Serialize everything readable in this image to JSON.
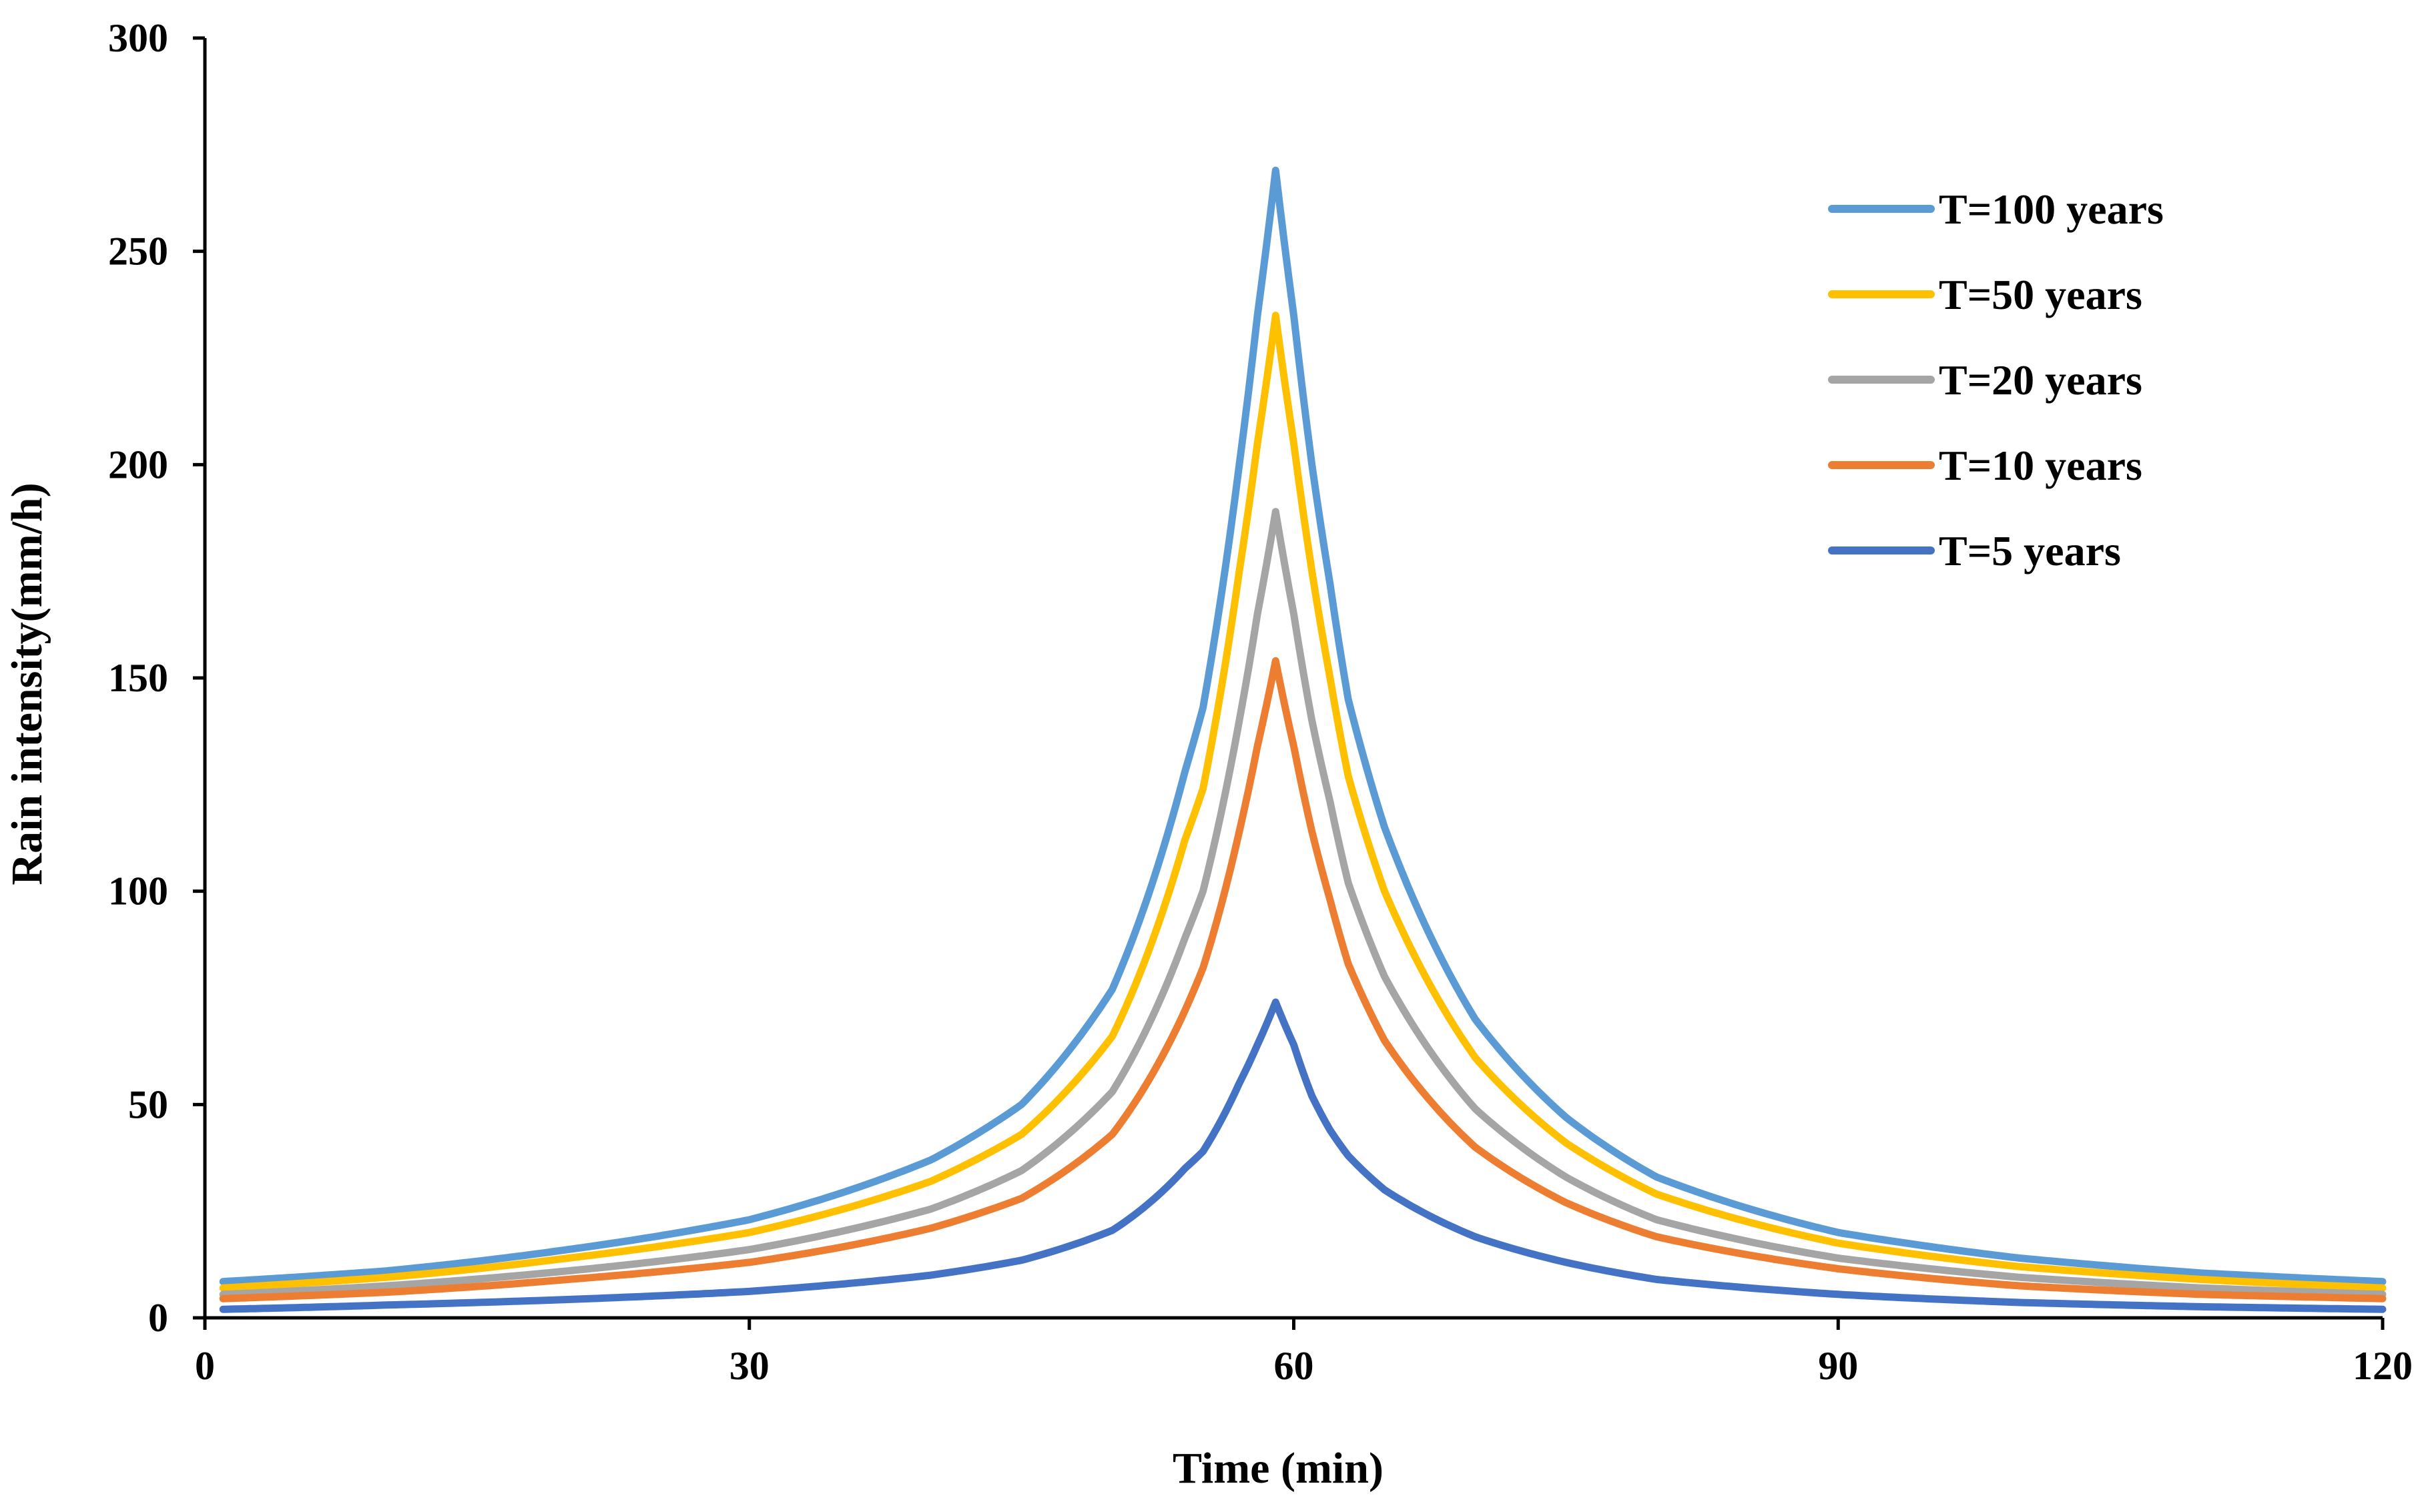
{
  "chart_data": {
    "type": "line",
    "title": "",
    "xlabel": "Time (min)",
    "ylabel": "Rain intensity(mm/h)",
    "xlim": [
      0,
      120
    ],
    "ylim": [
      0,
      300
    ],
    "xticks": [
      0,
      30,
      60,
      90,
      120
    ],
    "yticks": [
      0,
      50,
      100,
      150,
      200,
      250,
      300
    ],
    "grid": false,
    "legend_position": "top-right",
    "peak_time": 59,
    "x_range": [
      1,
      120
    ],
    "series": [
      {
        "name": "T=100 years",
        "color": "#5B9BD5",
        "peak": 269,
        "anchors": [
          [
            1,
            8.5
          ],
          [
            10,
            11
          ],
          [
            20,
            16
          ],
          [
            30,
            23
          ],
          [
            40,
            37
          ],
          [
            45,
            50
          ],
          [
            50,
            77
          ],
          [
            54,
            128
          ],
          [
            55,
            143
          ],
          [
            57,
            200
          ],
          [
            58,
            235
          ],
          [
            59,
            269
          ],
          [
            60,
            235
          ],
          [
            61,
            200
          ],
          [
            62,
            172
          ],
          [
            63,
            145
          ],
          [
            65,
            115
          ],
          [
            70,
            70
          ],
          [
            75,
            47
          ],
          [
            80,
            33
          ],
          [
            90,
            20
          ],
          [
            100,
            14
          ],
          [
            110,
            10.5
          ],
          [
            120,
            8.5
          ]
        ]
      },
      {
        "name": "T=50 years",
        "color": "#FFC000",
        "peak": 235,
        "anchors": [
          [
            1,
            7
          ],
          [
            10,
            9.5
          ],
          [
            20,
            14
          ],
          [
            30,
            20
          ],
          [
            40,
            32
          ],
          [
            45,
            43
          ],
          [
            50,
            66
          ],
          [
            54,
            112
          ],
          [
            55,
            124
          ],
          [
            57,
            175
          ],
          [
            58,
            205
          ],
          [
            59,
            235
          ],
          [
            60,
            205
          ],
          [
            61,
            175
          ],
          [
            62,
            150
          ],
          [
            63,
            127
          ],
          [
            65,
            100
          ],
          [
            70,
            61
          ],
          [
            75,
            41
          ],
          [
            80,
            29
          ],
          [
            90,
            17.5
          ],
          [
            100,
            12
          ],
          [
            110,
            9
          ],
          [
            120,
            7
          ]
        ]
      },
      {
        "name": "T=20 years",
        "color": "#A5A5A5",
        "peak": 189,
        "anchors": [
          [
            1,
            5.5
          ],
          [
            10,
            7.5
          ],
          [
            20,
            11
          ],
          [
            30,
            16
          ],
          [
            40,
            25.5
          ],
          [
            45,
            34.5
          ],
          [
            50,
            53
          ],
          [
            54,
            89
          ],
          [
            55,
            100
          ],
          [
            57,
            140
          ],
          [
            58,
            165
          ],
          [
            59,
            189
          ],
          [
            60,
            165
          ],
          [
            61,
            140
          ],
          [
            62,
            121
          ],
          [
            63,
            102
          ],
          [
            65,
            80
          ],
          [
            70,
            49
          ],
          [
            75,
            33
          ],
          [
            80,
            23
          ],
          [
            90,
            14
          ],
          [
            100,
            9.5
          ],
          [
            110,
            7
          ],
          [
            120,
            5.5
          ]
        ]
      },
      {
        "name": "T=10 years",
        "color": "#ED7D31",
        "peak": 154,
        "anchors": [
          [
            1,
            4.5
          ],
          [
            10,
            6
          ],
          [
            20,
            9
          ],
          [
            30,
            13
          ],
          [
            40,
            21
          ],
          [
            45,
            28
          ],
          [
            50,
            43
          ],
          [
            54,
            72
          ],
          [
            55,
            82
          ],
          [
            57,
            114
          ],
          [
            58,
            134
          ],
          [
            59,
            154
          ],
          [
            60,
            134
          ],
          [
            61,
            114
          ],
          [
            62,
            98
          ],
          [
            63,
            83
          ],
          [
            65,
            65
          ],
          [
            70,
            40
          ],
          [
            75,
            27
          ],
          [
            80,
            19
          ],
          [
            90,
            11.5
          ],
          [
            100,
            7.5
          ],
          [
            110,
            5.5
          ],
          [
            120,
            4.5
          ]
        ]
      },
      {
        "name": "T=5 years",
        "color": "#4472C4",
        "peak": 74,
        "anchors": [
          [
            1,
            2
          ],
          [
            10,
            3
          ],
          [
            20,
            4.3
          ],
          [
            30,
            6.2
          ],
          [
            40,
            10
          ],
          [
            45,
            13.5
          ],
          [
            50,
            20.5
          ],
          [
            54,
            35
          ],
          [
            55,
            39
          ],
          [
            57,
            55
          ],
          [
            58,
            64
          ],
          [
            59,
            74
          ],
          [
            60,
            64
          ],
          [
            61,
            52
          ],
          [
            62,
            44
          ],
          [
            63,
            38
          ],
          [
            65,
            30
          ],
          [
            70,
            19
          ],
          [
            75,
            13
          ],
          [
            80,
            9
          ],
          [
            90,
            5.5
          ],
          [
            100,
            3.6
          ],
          [
            110,
            2.6
          ],
          [
            120,
            2
          ]
        ]
      }
    ]
  }
}
